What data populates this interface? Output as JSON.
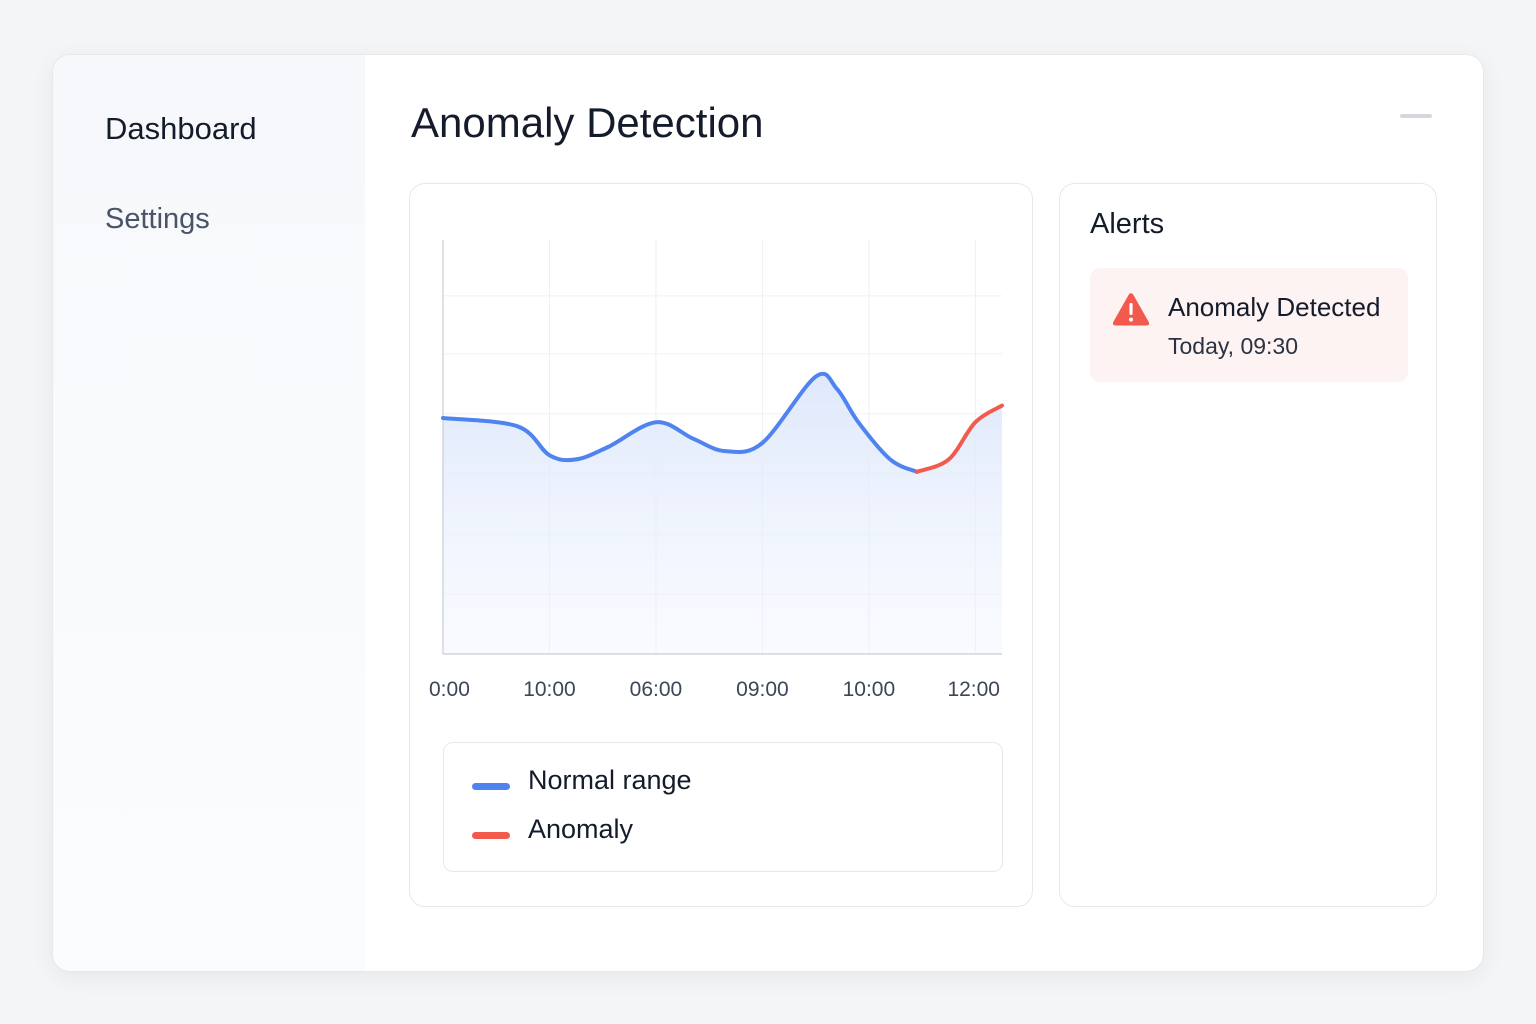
{
  "sidebar": {
    "items": [
      {
        "label": "Dashboard"
      },
      {
        "label": "Settings"
      }
    ]
  },
  "header": {
    "title": "Anomaly Detection"
  },
  "chart_data": {
    "type": "line",
    "x_tick_labels": [
      "0:00",
      "10:00",
      "06:00",
      "09:00",
      "10:00",
      "12:00"
    ],
    "ylim": [
      0,
      100
    ],
    "grid": true,
    "series": [
      {
        "name": "Normal range",
        "color": "#4f84f0",
        "points": [
          [
            0,
            57
          ],
          [
            0.7,
            55
          ],
          [
            1.0,
            48
          ],
          [
            1.25,
            47
          ],
          [
            1.55,
            50
          ],
          [
            2.0,
            56
          ],
          [
            2.35,
            52
          ],
          [
            2.65,
            49
          ],
          [
            3.0,
            51
          ],
          [
            3.5,
            67
          ],
          [
            3.7,
            64
          ],
          [
            3.9,
            56
          ],
          [
            4.2,
            47
          ],
          [
            4.45,
            44
          ]
        ]
      },
      {
        "name": "Anomaly",
        "color": "#f25a4e",
        "points": [
          [
            4.45,
            44
          ],
          [
            4.75,
            47
          ],
          [
            5.0,
            56
          ],
          [
            5.25,
            60
          ]
        ]
      }
    ],
    "legend": {
      "position": "below",
      "items": [
        {
          "label": "Normal range",
          "color": "#4f84f0"
        },
        {
          "label": "Anomaly",
          "color": "#f25a4e"
        }
      ]
    }
  },
  "alerts": {
    "title": "Alerts",
    "items": [
      {
        "title": "Anomaly Detected",
        "time": "Today, 09:30",
        "icon": "warning-triangle-icon",
        "color": "#f25a4e"
      }
    ]
  }
}
